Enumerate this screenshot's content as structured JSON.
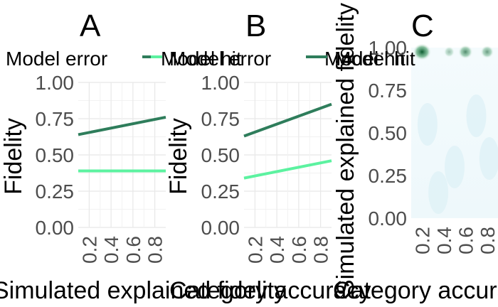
{
  "chart_data": [
    {
      "panel": "A",
      "type": "line",
      "title": "",
      "ylabel": "Fidelity",
      "xlabel": "Simulated explained fidelity",
      "xlim": [
        0.1,
        0.9
      ],
      "ylim": [
        0,
        1
      ],
      "x_ticks": [
        "0.2",
        "0.4",
        "0.6",
        "0.8"
      ],
      "y_ticks": [
        "0.00",
        "0.25",
        "0.50",
        "0.75",
        "1.00"
      ],
      "legend": "top",
      "grid": true,
      "series": [
        {
          "name": "Model error",
          "color": "#5cf2a0",
          "x": [
            0.1,
            0.9
          ],
          "y": [
            0.39,
            0.39
          ]
        },
        {
          "name": "Model hit",
          "color": "#2e7d5b",
          "x": [
            0.1,
            0.9
          ],
          "y": [
            0.64,
            0.76
          ]
        }
      ]
    },
    {
      "panel": "B",
      "type": "line",
      "title": "",
      "ylabel": "Fidelity",
      "xlabel": "Category accuracy",
      "xlim": [
        0.1,
        0.9
      ],
      "ylim": [
        0,
        1
      ],
      "x_ticks": [
        "0.2",
        "0.4",
        "0.6",
        "0.8"
      ],
      "y_ticks": [
        "0.00",
        "0.25",
        "0.50",
        "0.75",
        "1.00"
      ],
      "legend": "top",
      "grid": true,
      "series": [
        {
          "name": "Model error",
          "color": "#5cf2a0",
          "x": [
            0.1,
            0.9
          ],
          "y": [
            0.34,
            0.46
          ]
        },
        {
          "name": "Model hit",
          "color": "#2e7d5b",
          "x": [
            0.1,
            0.9
          ],
          "y": [
            0.63,
            0.85
          ]
        }
      ]
    },
    {
      "panel": "C",
      "type": "heatmap",
      "title": "",
      "ylabel": "Simulated explained fidelity",
      "xlabel": "Category accuracy",
      "xlim": [
        0.1,
        0.9
      ],
      "ylim": [
        0,
        1
      ],
      "x_ticks": [
        "0.2",
        "0.4",
        "0.6",
        "0.8"
      ],
      "y_ticks": [
        "0.00",
        "0.25",
        "0.50",
        "0.75",
        "1.00"
      ],
      "legend": "top",
      "legend_items": [
        "Model hit"
      ],
      "colors": {
        "low": "#ffffff",
        "mid": "#cfeaf0",
        "high": "#0b5a2e"
      },
      "hotspots": [
        {
          "x": 0.2,
          "y": 1.0,
          "density": 1.0
        },
        {
          "x": 0.6,
          "y": 1.0,
          "density": 0.7
        },
        {
          "x": 0.8,
          "y": 1.0,
          "density": 0.6
        },
        {
          "x": 0.45,
          "y": 1.0,
          "density": 0.4
        }
      ]
    }
  ]
}
